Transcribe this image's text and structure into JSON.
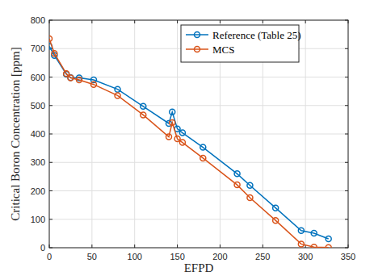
{
  "chart_data": {
    "type": "line",
    "x_label": "EFPD",
    "y_label": "Critical Boron Concentration [ppm]",
    "x": [
      0,
      6,
      20,
      25,
      35,
      52,
      80,
      110,
      140,
      144,
      150,
      156,
      180,
      220,
      235,
      265,
      295,
      310,
      327
    ],
    "series": [
      {
        "name": "Reference (Table 25)",
        "color": "#0072bd",
        "marker": "circle",
        "line_style": "solid",
        "values": [
          708,
          676,
          610,
          598,
          597,
          590,
          557,
          497,
          437,
          477,
          418,
          404,
          353,
          260,
          219,
          140,
          60,
          51,
          31
        ]
      },
      {
        "name": "MCS",
        "color": "#d95319",
        "marker": "circle",
        "line_style": "solid",
        "values": [
          735,
          683,
          612,
          597,
          590,
          574,
          535,
          467,
          390,
          440,
          383,
          370,
          315,
          221,
          176,
          96,
          13,
          2,
          1
        ]
      }
    ],
    "xlim": [
      0,
      350
    ],
    "xticks": [
      0,
      50,
      100,
      150,
      200,
      250,
      300,
      350
    ],
    "ylim": [
      0,
      800
    ],
    "yticks": [
      0,
      100,
      200,
      300,
      400,
      500,
      600,
      700,
      800
    ],
    "grid": true,
    "legend": "northeast"
  }
}
